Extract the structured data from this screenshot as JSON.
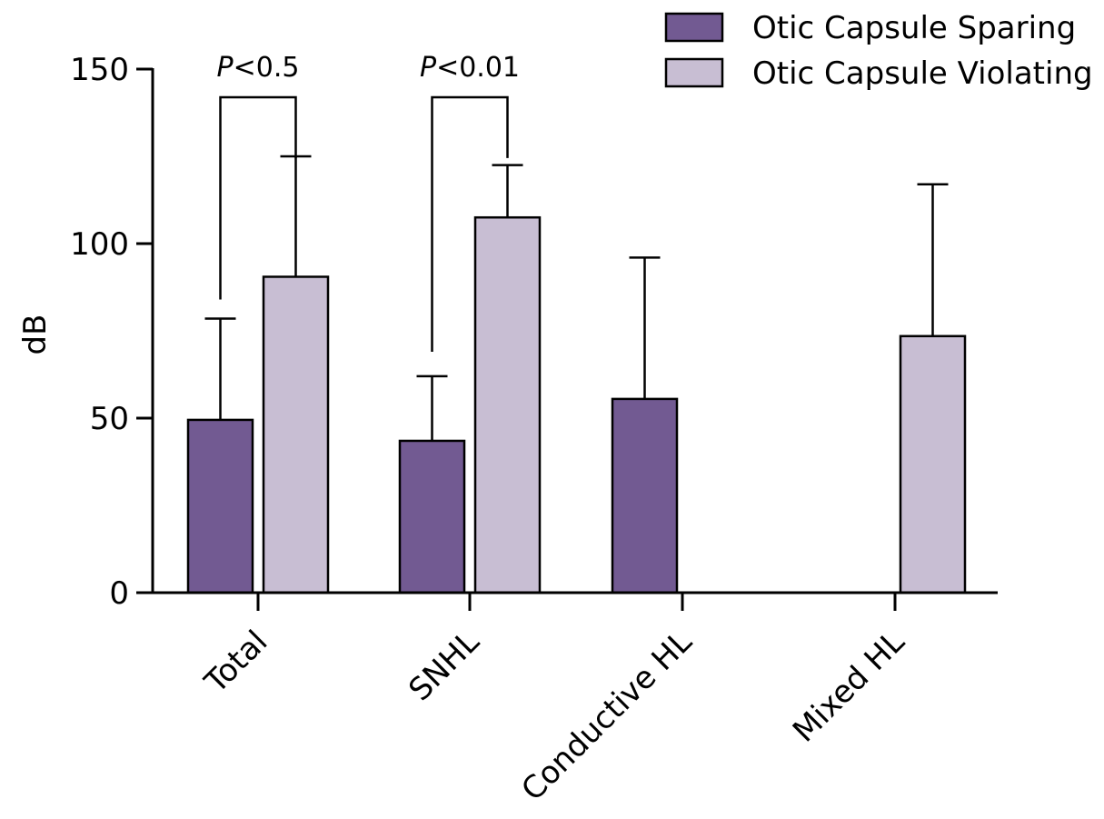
{
  "chart_data": {
    "type": "bar",
    "title": "",
    "xlabel": "",
    "ylabel": "dB",
    "ylim": [
      0,
      150
    ],
    "yticks": [
      0,
      50,
      100,
      150
    ],
    "grid": false,
    "legend_position": "top-right",
    "categories": [
      "Total",
      "SNHL",
      "Conductive HL",
      "Mixed HL"
    ],
    "series": [
      {
        "name": "Otic Capsule Sparing",
        "color": "#725a92",
        "values": [
          49.5,
          43.5,
          55.5,
          null
        ],
        "error": [
          29,
          18.5,
          40.5,
          null
        ]
      },
      {
        "name": "Otic Capsule Violating",
        "color": "#c8bed3",
        "values": [
          90.5,
          107.5,
          null,
          73.5
        ],
        "error": [
          34.5,
          15,
          null,
          43.5
        ]
      }
    ],
    "annotations": [
      {
        "category_index": 0,
        "text_prefix": "P",
        "text_suffix": "<0.5",
        "bracket_left_y": 84,
        "bracket_right_y": 124.5
      },
      {
        "category_index": 1,
        "text_prefix": "P",
        "text_suffix": "<0.01",
        "bracket_left_y": 69,
        "bracket_right_y": 124.5
      }
    ]
  }
}
